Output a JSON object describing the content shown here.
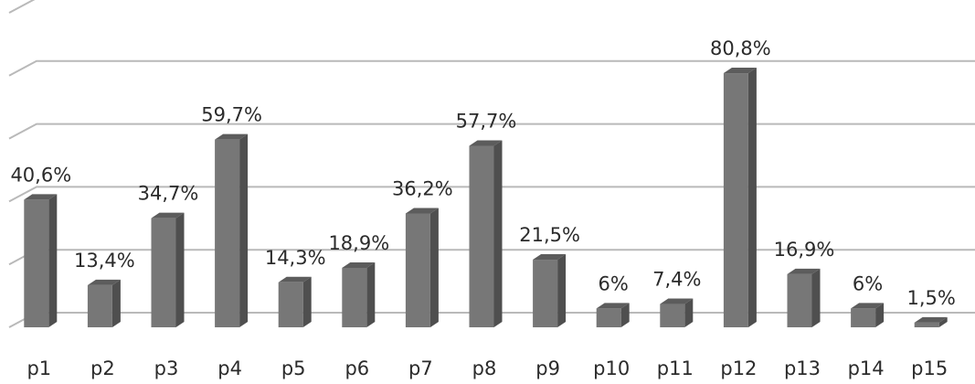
{
  "chart_data": {
    "type": "bar",
    "title": "",
    "xlabel": "",
    "ylabel": "",
    "categories": [
      "p1",
      "p2",
      "p3",
      "p4",
      "p5",
      "p6",
      "p7",
      "p8",
      "p9",
      "p10",
      "p11",
      "p12",
      "p13",
      "p14",
      "p15"
    ],
    "values": [
      40.6,
      13.4,
      34.7,
      59.7,
      14.3,
      18.9,
      36.2,
      57.7,
      21.5,
      6,
      7.4,
      80.8,
      16.9,
      6,
      1.5
    ],
    "data_labels": [
      "40,6%",
      "13,4%",
      "34,7%",
      "59,7%",
      "14,3%",
      "18,9%",
      "36,2%",
      "57,7%",
      "21,5%",
      "6%",
      "7,4%",
      "80,8%",
      "16,9%",
      "6%",
      "1,5%"
    ],
    "ylim": [
      0,
      100
    ],
    "grid": true,
    "style": "3d-bar",
    "bar_color": "#777777"
  }
}
